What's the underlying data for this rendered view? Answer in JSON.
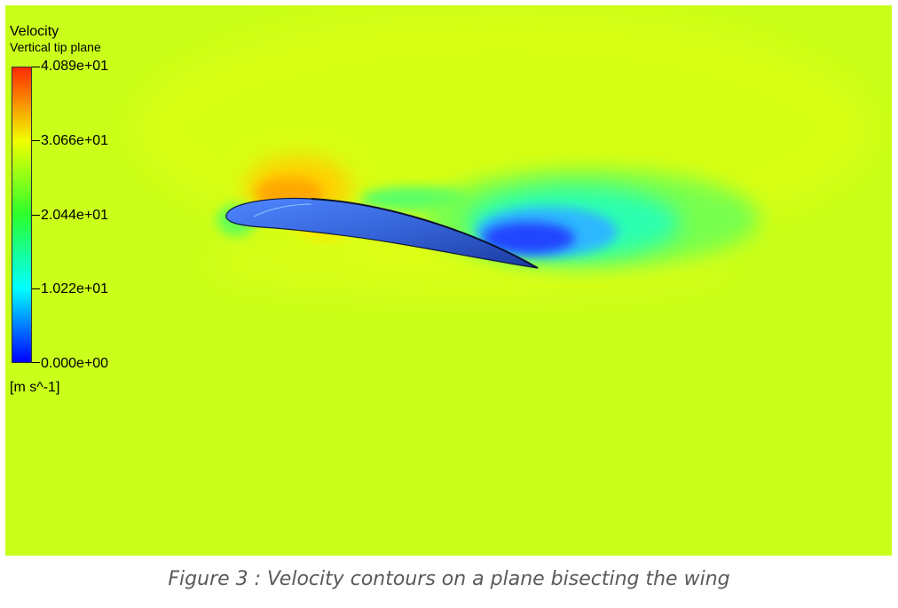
{
  "legend": {
    "title": "Velocity",
    "subtitle": "Vertical tip plane",
    "units": "[m s^-1]",
    "ticks": [
      "4.089e+01",
      "3.066e+01",
      "2.044e+01",
      "1.022e+01",
      "0.000e+00"
    ],
    "colors": [
      "#ff2a00",
      "#f0ff00",
      "#2cff2c",
      "#00ffff",
      "#0000ff"
    ]
  },
  "background_color": "#c9ff1a",
  "airfoil_color": "#3a6de0",
  "caption": "Figure 3 : Velocity contours on a plane bisecting the wing"
}
